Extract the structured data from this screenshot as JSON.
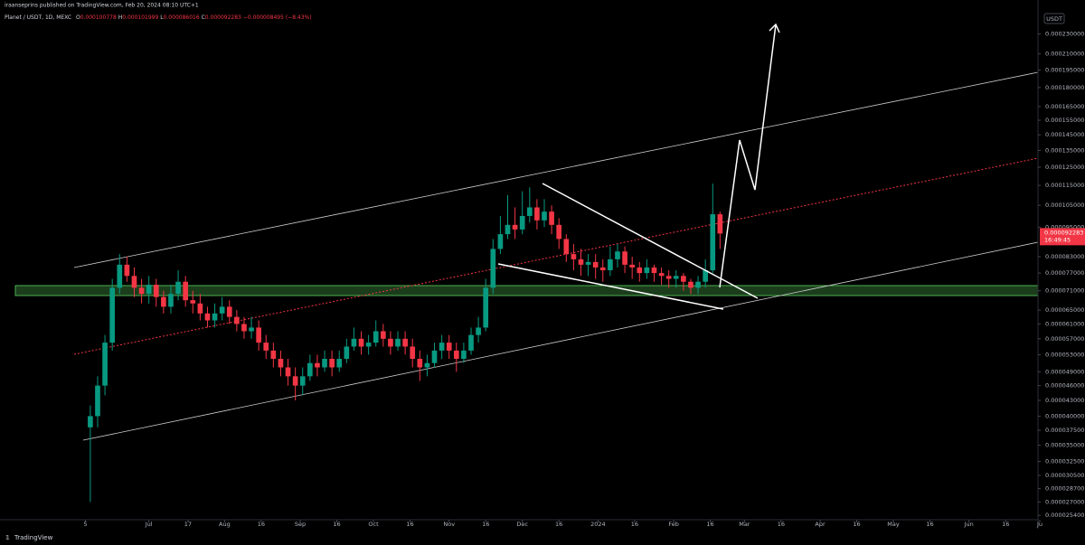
{
  "chart_data": {
    "type": "candlestick",
    "header": {
      "author_line": "iraanseprins published on TradingView.com, Feb 20, 2024 08:10 UTC+1",
      "symbol": "Planet / USDT, 1D, MEXC",
      "ohlc": [
        "O",
        "0.000100778",
        "H",
        "0.000101999",
        "L",
        "0.000086016",
        "C",
        "0.000092283",
        "−0.000008495 (−8.43%)"
      ]
    },
    "currency": "USDT",
    "brand": "TradingView",
    "countdown": "16:49:45",
    "last_price": {
      "value": 9.2283e-05,
      "label": "0.000092283"
    },
    "log_scale": true,
    "colors": {
      "up": "#089981",
      "down": "#f23645"
    },
    "x": [
      2,
      5,
      8,
      11,
      14,
      17,
      20,
      23,
      26,
      29,
      32,
      35,
      38,
      41,
      44,
      47,
      50,
      53,
      56,
      59,
      62,
      65,
      68,
      71,
      74,
      77,
      80,
      83,
      86,
      89,
      92,
      95,
      98,
      101,
      104,
      107,
      110,
      113,
      116,
      119,
      122,
      125,
      128,
      131,
      134,
      137,
      140,
      143,
      146,
      149,
      152,
      155,
      158,
      161,
      164,
      167,
      170,
      173,
      176,
      179,
      182,
      185,
      188,
      191,
      194,
      197,
      200,
      203,
      206,
      209,
      212,
      215,
      218,
      221,
      224,
      227,
      230,
      233,
      236,
      239,
      242,
      245,
      248,
      251,
      254,
      257,
      260
    ],
    "open": [
      3.8e-05,
      4e-05,
      4.6e-05,
      5.6e-05,
      7.2e-05,
      8e-05,
      7.6e-05,
      7.2e-05,
      7e-05,
      7.3e-05,
      6.9e-05,
      6.6e-05,
      7e-05,
      7.4e-05,
      6.8e-05,
      6.7e-05,
      6.4e-05,
      6.2e-05,
      6.4e-05,
      6.6e-05,
      6.3e-05,
      6.1e-05,
      5.9e-05,
      6e-05,
      5.6e-05,
      5.4e-05,
      5.2e-05,
      5e-05,
      4.8e-05,
      4.6e-05,
      4.8e-05,
      5.1e-05,
      5e-05,
      5.2e-05,
      5e-05,
      5.2e-05,
      5.5e-05,
      5.7e-05,
      5.5e-05,
      5.6e-05,
      5.9e-05,
      5.7e-05,
      5.5e-05,
      5.7e-05,
      5.5e-05,
      5.2e-05,
      5e-05,
      5.1e-05,
      5.4e-05,
      5.6e-05,
      5.4e-05,
      5.2e-05,
      5.4e-05,
      5.8e-05,
      6e-05,
      7.2e-05,
      8.6e-05,
      9.2e-05,
      9.6e-05,
      9.4e-05,
      0.0001,
      0.000104,
      9.8e-05,
      0.000102,
      9.6e-05,
      9e-05,
      8.4e-05,
      8.2e-05,
      8e-05,
      8.1e-05,
      7.9e-05,
      7.8e-05,
      8.2e-05,
      8.5e-05,
      8e-05,
      7.9e-05,
      7.7e-05,
      7.9e-05,
      7.7e-05,
      7.6e-05,
      7.5e-05,
      7.6e-05,
      7.4e-05,
      7.2e-05,
      7.4e-05,
      7.8e-05,
      0.000100778
    ],
    "high": [
      4.2e-05,
      4.8e-05,
      5.8e-05,
      7.5e-05,
      8.4e-05,
      8.3e-05,
      7.9e-05,
      7.5e-05,
      7.6e-05,
      7.5e-05,
      7.1e-05,
      7.3e-05,
      7.8e-05,
      7.6e-05,
      7.1e-05,
      7e-05,
      6.6e-05,
      6.7e-05,
      6.9e-05,
      6.8e-05,
      6.5e-05,
      6.3e-05,
      6.3e-05,
      6.2e-05,
      5.8e-05,
      5.6e-05,
      5.4e-05,
      5.2e-05,
      5e-05,
      5e-05,
      5.3e-05,
      5.3e-05,
      5.4e-05,
      5.4e-05,
      5.4e-05,
      5.7e-05,
      6e-05,
      5.9e-05,
      5.8e-05,
      6.2e-05,
      6.1e-05,
      5.9e-05,
      5.9e-05,
      5.9e-05,
      5.7e-05,
      5.4e-05,
      5.3e-05,
      5.6e-05,
      5.8e-05,
      5.8e-05,
      5.6e-05,
      5.6e-05,
      6e-05,
      6.3e-05,
      7.5e-05,
      9e-05,
      0.0001,
      0.00011,
      0.000104,
      0.000112,
      0.000114,
      0.000108,
      0.000108,
      0.000105,
      9.9e-05,
      9.2e-05,
      8.8e-05,
      8.6e-05,
      8.4e-05,
      8.4e-05,
      8.2e-05,
      8.7e-05,
      8.8e-05,
      8.7e-05,
      8.3e-05,
      8.1e-05,
      8.2e-05,
      8e-05,
      7.9e-05,
      7.8e-05,
      7.8e-05,
      7.7e-05,
      7.5e-05,
      7.6e-05,
      8.2e-05,
      0.000116,
      0.000101999
    ],
    "low": [
      2.7e-05,
      3.8e-05,
      4.4e-05,
      5.4e-05,
      7e-05,
      7.4e-05,
      6.9e-05,
      6.7e-05,
      6.7e-05,
      6.6e-05,
      6.4e-05,
      6.4e-05,
      6.8e-05,
      6.6e-05,
      6.4e-05,
      6.2e-05,
      6e-05,
      6e-05,
      6.2e-05,
      6.1e-05,
      5.9e-05,
      5.7e-05,
      5.7e-05,
      5.4e-05,
      5.2e-05,
      5e-05,
      4.8e-05,
      4.6e-05,
      4.3e-05,
      4.4e-05,
      4.7e-05,
      4.8e-05,
      4.9e-05,
      4.8e-05,
      4.9e-05,
      5.1e-05,
      5.4e-05,
      5.3e-05,
      5.3e-05,
      5.5e-05,
      5.5e-05,
      5.3e-05,
      5.4e-05,
      5.3e-05,
      5e-05,
      4.7e-05,
      4.8e-05,
      5e-05,
      5.2e-05,
      5.2e-05,
      4.9e-05,
      5.1e-05,
      5.3e-05,
      5.6e-05,
      5.9e-05,
      7e-05,
      8.4e-05,
      9e-05,
      9e-05,
      9.2e-05,
      9.7e-05,
      9.4e-05,
      9.5e-05,
      9.2e-05,
      8.6e-05,
      8.1e-05,
      7.8e-05,
      7.6e-05,
      7.6e-05,
      7.5e-05,
      7.4e-05,
      7.6e-05,
      7.9e-05,
      7.7e-05,
      7.5e-05,
      7.4e-05,
      7.5e-05,
      7.4e-05,
      7.3e-05,
      7.2e-05,
      7.2e-05,
      7.1e-05,
      7e-05,
      7e-05,
      7.2e-05,
      7.7e-05,
      8.6016e-05
    ],
    "close": [
      4e-05,
      4.6e-05,
      5.6e-05,
      7.2e-05,
      8e-05,
      7.6e-05,
      7.2e-05,
      7e-05,
      7.3e-05,
      6.9e-05,
      6.6e-05,
      7e-05,
      7.4e-05,
      6.8e-05,
      6.7e-05,
      6.4e-05,
      6.2e-05,
      6.4e-05,
      6.6e-05,
      6.3e-05,
      6.1e-05,
      5.9e-05,
      6e-05,
      5.6e-05,
      5.4e-05,
      5.2e-05,
      5e-05,
      4.8e-05,
      4.6e-05,
      4.8e-05,
      5.1e-05,
      5e-05,
      5.2e-05,
      5e-05,
      5.2e-05,
      5.5e-05,
      5.7e-05,
      5.5e-05,
      5.6e-05,
      5.9e-05,
      5.7e-05,
      5.5e-05,
      5.7e-05,
      5.5e-05,
      5.2e-05,
      5e-05,
      5.1e-05,
      5.4e-05,
      5.6e-05,
      5.4e-05,
      5.2e-05,
      5.4e-05,
      5.8e-05,
      6e-05,
      7.2e-05,
      8.6e-05,
      9.2e-05,
      9.6e-05,
      9.4e-05,
      0.0001,
      0.000104,
      9.8e-05,
      0.000102,
      9.6e-05,
      9e-05,
      8.4e-05,
      8.2e-05,
      8e-05,
      8.1e-05,
      7.9e-05,
      7.8e-05,
      8.2e-05,
      8.5e-05,
      8e-05,
      7.9e-05,
      7.7e-05,
      7.9e-05,
      7.7e-05,
      7.6e-05,
      7.5e-05,
      7.6e-05,
      7.4e-05,
      7.2e-05,
      7.4e-05,
      7.8e-05,
      0.000100778,
      9.2283e-05
    ],
    "xlim": [
      -35,
      391
    ],
    "xticks": [
      {
        "value": 0,
        "label": "5"
      },
      {
        "value": 26,
        "label": "Jul"
      },
      {
        "value": 42,
        "label": "17"
      },
      {
        "value": 57,
        "label": "Aug"
      },
      {
        "value": 72,
        "label": "16"
      },
      {
        "value": 88,
        "label": "Sep"
      },
      {
        "value": 103,
        "label": "16"
      },
      {
        "value": 118,
        "label": "Oct"
      },
      {
        "value": 133,
        "label": "16"
      },
      {
        "value": 149,
        "label": "Nov"
      },
      {
        "value": 164,
        "label": "16"
      },
      {
        "value": 179,
        "label": "Dec"
      },
      {
        "value": 194,
        "label": "16"
      },
      {
        "value": 210,
        "label": "2024"
      },
      {
        "value": 225,
        "label": "16"
      },
      {
        "value": 241,
        "label": "Feb"
      },
      {
        "value": 256,
        "label": "16"
      },
      {
        "value": 270,
        "label": "Mar"
      },
      {
        "value": 285,
        "label": "16"
      },
      {
        "value": 301,
        "label": "Apr"
      },
      {
        "value": 316,
        "label": "16"
      },
      {
        "value": 331,
        "label": "May"
      },
      {
        "value": 346,
        "label": "16"
      },
      {
        "value": 362,
        "label": "Jun"
      },
      {
        "value": 377,
        "label": "16"
      },
      {
        "value": 391,
        "label": "Ju"
      }
    ],
    "ylim": [
      2.49e-05,
      0.00026
    ],
    "yticks": [
      {
        "value": 0.00023,
        "label": "0.000230000"
      },
      {
        "value": 0.00021,
        "label": "0.000210000"
      },
      {
        "value": 0.000195,
        "label": "0.000195000"
      },
      {
        "value": 0.00018,
        "label": "0.000180000"
      },
      {
        "value": 0.000165,
        "label": "0.000165000"
      },
      {
        "value": 0.000155,
        "label": "0.000155000"
      },
      {
        "value": 0.000145,
        "label": "0.000145000"
      },
      {
        "value": 0.000135,
        "label": "0.000135000"
      },
      {
        "value": 0.000125,
        "label": "0.000125000"
      },
      {
        "value": 0.000115,
        "label": "0.000115000"
      },
      {
        "value": 0.000105,
        "label": "0.000105000"
      },
      {
        "value": 9.5e-05,
        "label": "0.000095000"
      },
      {
        "value": 8.3e-05,
        "label": "0.000083000"
      },
      {
        "value": 7.7e-05,
        "label": "0.000077000"
      },
      {
        "value": 7.1e-05,
        "label": "0.000071000"
      },
      {
        "value": 6.5e-05,
        "label": "0.000065000"
      },
      {
        "value": 6.1e-05,
        "label": "0.000061000"
      },
      {
        "value": 5.7e-05,
        "label": "0.000057000"
      },
      {
        "value": 5.3e-05,
        "label": "0.000053000"
      },
      {
        "value": 4.9e-05,
        "label": "0.000049000"
      },
      {
        "value": 4.6e-05,
        "label": "0.000046000"
      },
      {
        "value": 4.3e-05,
        "label": "0.000043000"
      },
      {
        "value": 4e-05,
        "label": "0.000040000"
      },
      {
        "value": 3.75e-05,
        "label": "0.000037500"
      },
      {
        "value": 3.5e-05,
        "label": "0.000035000"
      },
      {
        "value": 3.25e-05,
        "label": "0.000032500"
      },
      {
        "value": 3.05e-05,
        "label": "0.000030500"
      },
      {
        "value": 2.87e-05,
        "label": "0.000028700"
      },
      {
        "value": 2.7e-05,
        "label": "0.000027000"
      },
      {
        "value": 2.54e-05,
        "label": "0.000025400"
      }
    ]
  }
}
